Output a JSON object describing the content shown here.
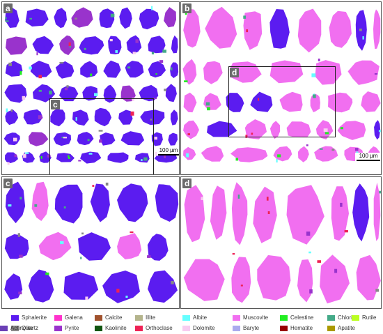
{
  "panels": [
    {
      "label": "a",
      "scale_label": "100 µm",
      "bg": "#5b1cf0"
    },
    {
      "label": "b",
      "scale_label": "100 µm",
      "bg": "#f16ff0"
    },
    {
      "label": "c",
      "scale_label": "",
      "bg": "#5b1cf0"
    },
    {
      "label": "d",
      "scale_label": "",
      "bg": "#f16ff0"
    }
  ],
  "insets": {
    "c": "c",
    "d": "d"
  },
  "legend": [
    {
      "name": "Sphalerite",
      "color": "#5b1cf0"
    },
    {
      "name": "Galena",
      "color": "#ff33cc"
    },
    {
      "name": "Calcite",
      "color": "#a0522d"
    },
    {
      "name": "Illite",
      "color": "#b4b48c"
    },
    {
      "name": "Albite",
      "color": "#66ffff"
    },
    {
      "name": "Muscovite",
      "color": "#f16ff0"
    },
    {
      "name": "Celestine",
      "color": "#22ee22"
    },
    {
      "name": "Chlorite",
      "color": "#44aa88"
    },
    {
      "name": "Rutile",
      "color": "#bbff22"
    },
    {
      "name": "Quartz",
      "color": "#888888"
    },
    {
      "name": "Pyrite",
      "color": "#9933cc"
    },
    {
      "name": "Kaolinite",
      "color": "#115511"
    },
    {
      "name": "Orthoclase",
      "color": "#ee2255"
    },
    {
      "name": "Dolomite",
      "color": "#f8ccf0"
    },
    {
      "name": "Baryte",
      "color": "#aaaaee"
    },
    {
      "name": "Hematite",
      "color": "#990000"
    },
    {
      "name": "Apatite",
      "color": "#aa9900"
    },
    {
      "name": "Actinolite",
      "color": "#6a3fb5"
    }
  ]
}
